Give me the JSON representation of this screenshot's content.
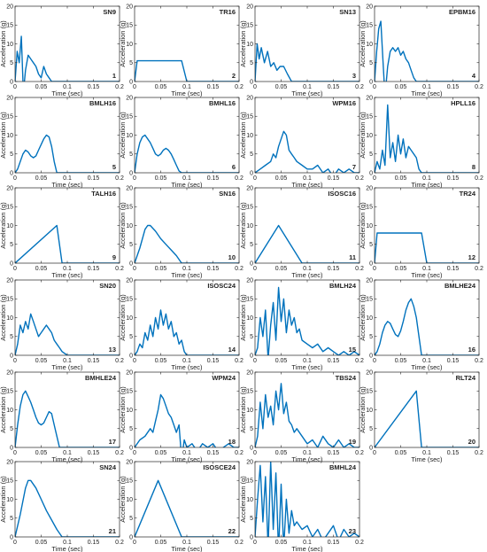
{
  "chart_data": {
    "type": "line",
    "line_color": "#0072BD",
    "grid": false,
    "x_label": "Time (sec)",
    "y_label": "Acceleration (g)",
    "xlim": [
      0,
      0.2
    ],
    "ylim": [
      0,
      20
    ],
    "x_ticks": [
      "0",
      "0.05",
      "0.1",
      "0.15",
      "0.2"
    ],
    "y_ticks": [
      "0",
      "5",
      "10",
      "15",
      "20"
    ],
    "panels": [
      {
        "title": "SN9",
        "number": "1",
        "x": [
          0,
          0.004,
          0.008,
          0.012,
          0.016,
          0.02,
          0.025,
          0.03,
          0.035,
          0.04,
          0.045,
          0.05,
          0.055,
          0.06,
          0.065,
          0.07,
          0.075,
          0.2
        ],
        "y": [
          0,
          8,
          5,
          12,
          -3,
          3,
          7,
          6,
          5,
          4,
          2,
          1,
          4,
          2,
          1,
          0,
          0,
          0
        ]
      },
      {
        "title": "TR16",
        "number": "2",
        "x": [
          0,
          0.005,
          0.09,
          0.1,
          0.2
        ],
        "y": [
          0,
          5.5,
          5.5,
          0,
          0
        ]
      },
      {
        "title": "SN13",
        "number": "3",
        "x": [
          0,
          0.004,
          0.008,
          0.012,
          0.018,
          0.024,
          0.03,
          0.036,
          0.042,
          0.048,
          0.055,
          0.062,
          0.07,
          0.075,
          0.2
        ],
        "y": [
          0,
          10,
          6,
          9,
          5,
          8,
          4,
          5,
          3,
          4,
          4,
          2,
          0,
          0,
          0
        ]
      },
      {
        "title": "EPBM16",
        "number": "4",
        "x": [
          0,
          0.004,
          0.008,
          0.012,
          0.016,
          0.02,
          0.025,
          0.03,
          0.035,
          0.04,
          0.045,
          0.05,
          0.055,
          0.06,
          0.065,
          0.07,
          0.075,
          0.08,
          0.09,
          0.2
        ],
        "y": [
          0,
          8,
          14,
          16,
          6,
          -4,
          4,
          8,
          9,
          8,
          9,
          7,
          8,
          6,
          5,
          3,
          1,
          0,
          0,
          0
        ]
      },
      {
        "title": "BMLH16",
        "number": "5",
        "x": [
          0,
          0.005,
          0.01,
          0.015,
          0.02,
          0.025,
          0.03,
          0.035,
          0.04,
          0.045,
          0.05,
          0.055,
          0.06,
          0.065,
          0.07,
          0.075,
          0.08,
          0.09,
          0.2
        ],
        "y": [
          0,
          1,
          3,
          5,
          6,
          5.5,
          4.5,
          4,
          4.5,
          6,
          7.5,
          9,
          10,
          9.5,
          7,
          3,
          0,
          0,
          0
        ]
      },
      {
        "title": "BMHL16",
        "number": "6",
        "x": [
          0,
          0.005,
          0.01,
          0.015,
          0.02,
          0.025,
          0.03,
          0.035,
          0.04,
          0.045,
          0.05,
          0.055,
          0.06,
          0.065,
          0.07,
          0.075,
          0.08,
          0.085,
          0.09,
          0.2
        ],
        "y": [
          0,
          5,
          8,
          9.5,
          10,
          9,
          8,
          6.5,
          5,
          4.5,
          5,
          6,
          6.5,
          6,
          5,
          3.5,
          2,
          0.5,
          0,
          0
        ]
      },
      {
        "title": "WPM16",
        "number": "7",
        "x": [
          0,
          0.01,
          0.02,
          0.03,
          0.035,
          0.04,
          0.045,
          0.05,
          0.055,
          0.06,
          0.065,
          0.07,
          0.075,
          0.08,
          0.09,
          0.1,
          0.11,
          0.12,
          0.13,
          0.14,
          0.15,
          0.16,
          0.17,
          0.18,
          0.19,
          0.2
        ],
        "y": [
          0,
          1,
          2,
          3,
          5,
          4,
          7,
          9,
          11,
          10,
          6,
          5,
          4,
          3,
          2,
          1,
          1,
          2,
          0,
          1,
          -1,
          1,
          0,
          1,
          0,
          0
        ]
      },
      {
        "title": "HPLL16",
        "number": "8",
        "x": [
          0,
          0.005,
          0.01,
          0.015,
          0.02,
          0.025,
          0.03,
          0.035,
          0.04,
          0.045,
          0.05,
          0.055,
          0.06,
          0.065,
          0.07,
          0.075,
          0.08,
          0.085,
          0.09,
          0.2
        ],
        "y": [
          0,
          3,
          1,
          6,
          2,
          18,
          4,
          8,
          3,
          10,
          5,
          9,
          4,
          7,
          6,
          5,
          4,
          1,
          0,
          0
        ]
      },
      {
        "title": "TALH16",
        "number": "9",
        "x": [
          0,
          0.08,
          0.09,
          0.2
        ],
        "y": [
          0,
          10,
          0,
          0
        ]
      },
      {
        "title": "SN16",
        "number": "10",
        "x": [
          0,
          0.01,
          0.02,
          0.025,
          0.03,
          0.04,
          0.05,
          0.06,
          0.07,
          0.08,
          0.09,
          0.2
        ],
        "y": [
          0,
          4,
          9,
          10,
          10,
          8.5,
          6.5,
          5,
          3.5,
          2,
          0,
          0
        ]
      },
      {
        "title": "ISOSC16",
        "number": "11",
        "x": [
          0,
          0.045,
          0.09,
          0.2
        ],
        "y": [
          0,
          10,
          0,
          0
        ]
      },
      {
        "title": "TR24",
        "number": "12",
        "x": [
          0,
          0.005,
          0.09,
          0.1,
          0.2
        ],
        "y": [
          0,
          8,
          8,
          0,
          0
        ]
      },
      {
        "title": "SN20",
        "number": "13",
        "x": [
          0,
          0.005,
          0.01,
          0.015,
          0.02,
          0.025,
          0.03,
          0.035,
          0.04,
          0.045,
          0.05,
          0.055,
          0.06,
          0.065,
          0.07,
          0.075,
          0.08,
          0.085,
          0.09,
          0.1,
          0.2
        ],
        "y": [
          0,
          3,
          8,
          6,
          9,
          7,
          11,
          9,
          7,
          5,
          6,
          7,
          8,
          7,
          6,
          4,
          3,
          2,
          1,
          0,
          0
        ]
      },
      {
        "title": "ISOSC24",
        "number": "14",
        "x": [
          0,
          0.005,
          0.01,
          0.015,
          0.02,
          0.025,
          0.03,
          0.035,
          0.04,
          0.045,
          0.05,
          0.055,
          0.06,
          0.065,
          0.07,
          0.075,
          0.08,
          0.085,
          0.09,
          0.095,
          0.1,
          0.2
        ],
        "y": [
          0,
          1,
          3,
          2,
          6,
          4,
          8,
          5,
          10,
          7,
          12,
          8,
          11,
          7,
          9,
          5,
          6,
          3,
          4,
          1,
          0,
          0
        ]
      },
      {
        "title": "BMLH24",
        "number": "15",
        "x": [
          0,
          0.005,
          0.01,
          0.015,
          0.02,
          0.025,
          0.03,
          0.035,
          0.04,
          0.045,
          0.05,
          0.055,
          0.06,
          0.065,
          0.07,
          0.075,
          0.08,
          0.085,
          0.09,
          0.1,
          0.11,
          0.12,
          0.13,
          0.14,
          0.15,
          0.16,
          0.17,
          0.18,
          0.19,
          0.2
        ],
        "y": [
          0,
          2,
          10,
          5,
          12,
          -1,
          8,
          14,
          4,
          18,
          9,
          15,
          6,
          12,
          8,
          10,
          6,
          7,
          4,
          3,
          2,
          3,
          1,
          2,
          1,
          0,
          1,
          0,
          1,
          0
        ]
      },
      {
        "title": "BMLHE24",
        "number": "16",
        "x": [
          0,
          0.005,
          0.01,
          0.015,
          0.02,
          0.025,
          0.03,
          0.035,
          0.04,
          0.045,
          0.05,
          0.055,
          0.06,
          0.065,
          0.07,
          0.075,
          0.08,
          0.09,
          0.2
        ],
        "y": [
          0,
          1,
          3,
          6,
          8,
          9,
          8.5,
          7,
          5.5,
          5,
          6.5,
          9,
          12,
          14,
          15,
          13,
          10,
          0,
          0
        ]
      },
      {
        "title": "BMHLE24",
        "number": "17",
        "x": [
          0,
          0.005,
          0.01,
          0.015,
          0.02,
          0.025,
          0.03,
          0.035,
          0.04,
          0.045,
          0.05,
          0.055,
          0.06,
          0.065,
          0.07,
          0.075,
          0.08,
          0.085,
          0.09,
          0.2
        ],
        "y": [
          0,
          6,
          11,
          14,
          15,
          13.5,
          12,
          10,
          8,
          6.5,
          6,
          6.5,
          8,
          9.5,
          9,
          6,
          3,
          0,
          0,
          0
        ]
      },
      {
        "title": "WPM24",
        "number": "18",
        "x": [
          0,
          0.01,
          0.02,
          0.03,
          0.035,
          0.04,
          0.045,
          0.05,
          0.055,
          0.06,
          0.065,
          0.07,
          0.075,
          0.08,
          0.085,
          0.09,
          0.095,
          0.1,
          0.11,
          0.12,
          0.13,
          0.14,
          0.15,
          0.16,
          0.17,
          0.18,
          0.19,
          0.2
        ],
        "y": [
          0,
          2,
          3,
          5,
          4,
          7,
          10,
          14,
          13,
          11,
          9,
          8,
          6,
          4,
          6,
          -3,
          2,
          0,
          1,
          -1,
          1,
          0,
          1,
          -1,
          0,
          1,
          0,
          0
        ]
      },
      {
        "title": "TBS24",
        "number": "19",
        "x": [
          0,
          0.005,
          0.01,
          0.015,
          0.02,
          0.025,
          0.03,
          0.035,
          0.04,
          0.045,
          0.05,
          0.055,
          0.06,
          0.065,
          0.07,
          0.075,
          0.08,
          0.09,
          0.1,
          0.11,
          0.12,
          0.13,
          0.14,
          0.15,
          0.16,
          0.17,
          0.18,
          0.19,
          0.2
        ],
        "y": [
          0,
          3,
          12,
          5,
          14,
          8,
          11,
          6,
          15,
          10,
          17,
          9,
          12,
          7,
          6,
          4,
          5,
          3,
          1,
          2,
          0,
          3,
          1,
          0,
          2,
          0,
          1,
          0,
          0
        ]
      },
      {
        "title": "RLT24",
        "number": "20",
        "x": [
          0,
          0.08,
          0.09,
          0.2
        ],
        "y": [
          0,
          15,
          0,
          0
        ]
      },
      {
        "title": "SN24",
        "number": "21",
        "x": [
          0,
          0.01,
          0.02,
          0.025,
          0.03,
          0.04,
          0.05,
          0.06,
          0.07,
          0.08,
          0.09,
          0.2
        ],
        "y": [
          0,
          6,
          13,
          15,
          15,
          13,
          10,
          7,
          4.5,
          2,
          0,
          0
        ]
      },
      {
        "title": "ISOSCE24",
        "number": "22",
        "x": [
          0,
          0.045,
          0.09,
          0.2
        ],
        "y": [
          0,
          15,
          0,
          0
        ]
      },
      {
        "title": "BMHL24",
        "number": "23",
        "x": [
          0,
          0.005,
          0.01,
          0.015,
          0.02,
          0.025,
          0.03,
          0.035,
          0.04,
          0.045,
          0.05,
          0.055,
          0.06,
          0.065,
          0.07,
          0.075,
          0.08,
          0.09,
          0.1,
          0.11,
          0.12,
          0.13,
          0.14,
          0.15,
          0.16,
          0.17,
          0.18,
          0.19,
          0.2
        ],
        "y": [
          0,
          10,
          19,
          4,
          16,
          -3,
          20,
          2,
          17,
          -4,
          14,
          -3,
          10,
          1,
          7,
          3,
          4,
          2,
          3,
          0,
          2,
          -1,
          1,
          3,
          -1,
          2,
          0,
          1,
          0
        ]
      }
    ]
  }
}
